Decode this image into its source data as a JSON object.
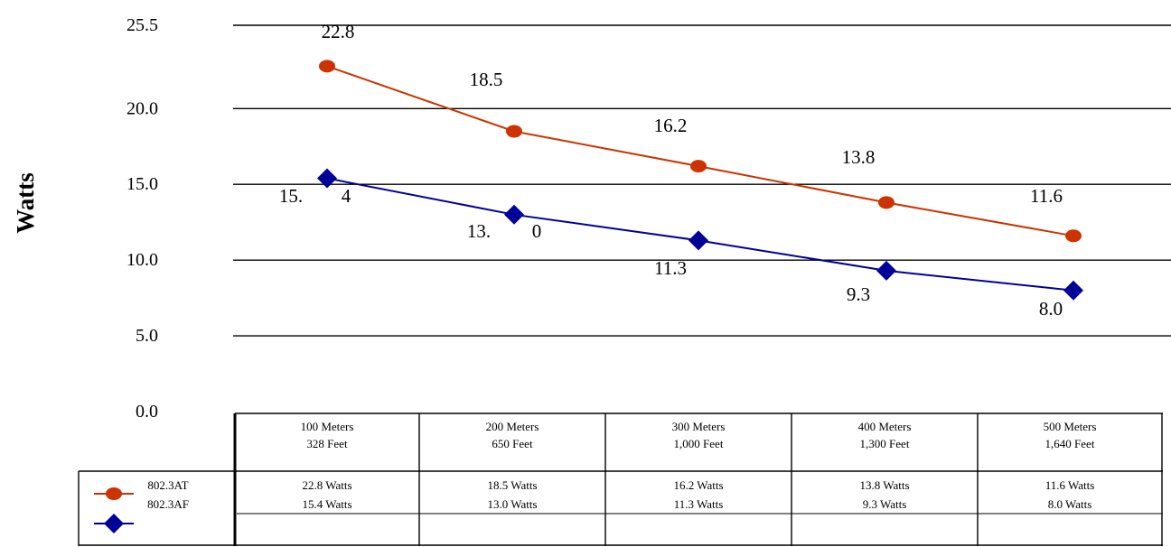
{
  "chart_data": {
    "type": "line",
    "title": "",
    "xlabel": "",
    "ylabel": "Watts",
    "ylim": [
      0,
      25.5
    ],
    "y_ticks": [
      0.0,
      5.0,
      10.0,
      15.0,
      20.0,
      25.5
    ],
    "y_tick_labels": [
      "0.0",
      "5.0",
      "10.0",
      "15.0",
      "20.0",
      "25.5"
    ],
    "grid": true,
    "categories": [
      [
        "100 Meters",
        "328 Feet"
      ],
      [
        "200 Meters",
        "650 Feet"
      ],
      [
        "300 Meters",
        "1,000 Feet"
      ],
      [
        "400 Meters",
        "1,300 Feet"
      ],
      [
        "500 Meters",
        "1,640 Feet"
      ]
    ],
    "series": [
      {
        "name": "802.3AT",
        "color": "#cc3300",
        "marker": "circle",
        "values": [
          22.8,
          18.5,
          16.2,
          13.8,
          11.6
        ],
        "data_labels": [
          "22.8",
          "18.5",
          "16.2",
          "13.8",
          "11.6"
        ],
        "table_values": [
          "22.8 Watts",
          "18.5 Watts",
          "16.2 Watts",
          "13.8 Watts",
          "11.6 Watts"
        ]
      },
      {
        "name": "802.3AF",
        "color": "#000099",
        "marker": "diamond",
        "values": [
          15.4,
          13.0,
          11.3,
          9.3,
          8.0
        ],
        "data_labels": [
          [
            "15.",
            "4"
          ],
          [
            "13.",
            "0"
          ],
          "11.3",
          "9.3",
          "8.0"
        ],
        "table_values": [
          "15.4 Watts",
          "13.0 Watts",
          "11.3 Watts",
          "9.3 Watts",
          "8.0 Watts"
        ]
      }
    ]
  }
}
